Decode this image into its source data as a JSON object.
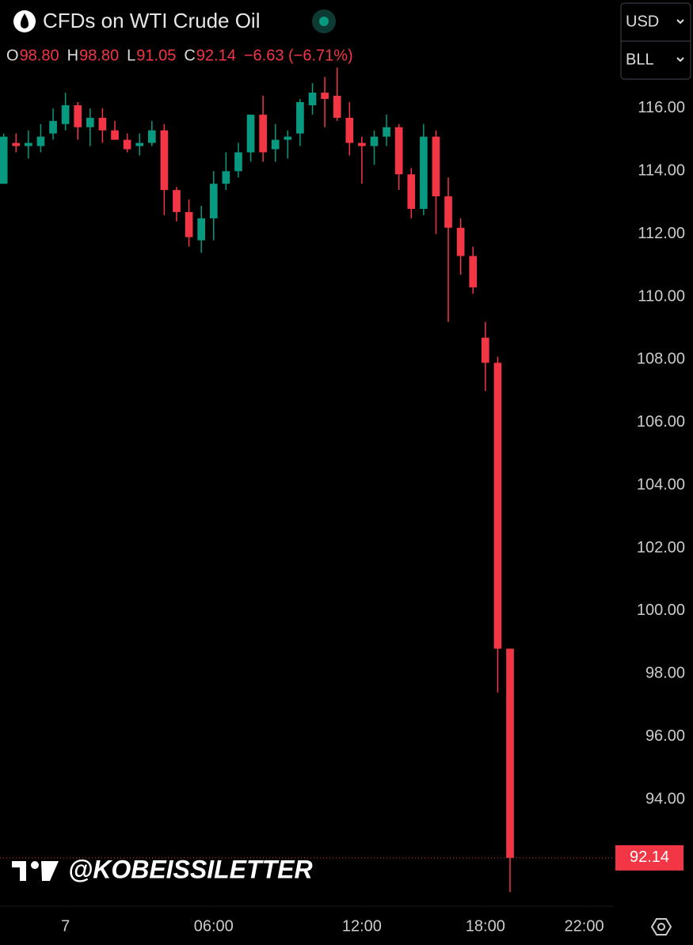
{
  "header": {
    "title": "CFDs on WTI Crude Oil",
    "ohlc": [
      {
        "label": "O",
        "value": "98.80"
      },
      {
        "label": "H",
        "value": "98.80"
      },
      {
        "label": "L",
        "value": "91.05"
      },
      {
        "label": "C",
        "value": "92.14"
      }
    ],
    "change": "−6.63 (−6.71%)"
  },
  "controls": {
    "currency": "USD",
    "unit": "BLL"
  },
  "watermark": "@KOBEISSILETTER",
  "last_price_label": "92.14",
  "chart_data": {
    "type": "candlestick",
    "up_color": "#089981",
    "down_color": "#f23645",
    "xlim": [
      -0.3,
      49.4
    ],
    "ylim": [
      90.6,
      119.45
    ],
    "xticks": [
      {
        "value": 5,
        "label": "7"
      },
      {
        "value": 17,
        "label": "06:00"
      },
      {
        "value": 29,
        "label": "12:00"
      },
      {
        "value": 39,
        "label": "18:00"
      },
      {
        "value": 47,
        "label": "22:00"
      }
    ],
    "yticks": [
      {
        "value": 94,
        "label": "94.00"
      },
      {
        "value": 96,
        "label": "96.00"
      },
      {
        "value": 98,
        "label": "98.00"
      },
      {
        "value": 100,
        "label": "100.00"
      },
      {
        "value": 102,
        "label": "102.00"
      },
      {
        "value": 104,
        "label": "104.00"
      },
      {
        "value": 106,
        "label": "106.00"
      },
      {
        "value": 108,
        "label": "108.00"
      },
      {
        "value": 110,
        "label": "110.00"
      },
      {
        "value": 112,
        "label": "112.00"
      },
      {
        "value": 114,
        "label": "114.00"
      },
      {
        "value": 116,
        "label": "116.00"
      }
    ],
    "open": [
      113.6,
      114.9,
      114.8,
      114.8,
      115.2,
      115.5,
      116.1,
      115.4,
      115.7,
      115.3,
      115.0,
      114.8,
      114.9,
      115.3,
      113.4,
      112.7,
      111.8,
      112.5,
      113.6,
      114.0,
      114.6,
      115.8,
      114.7,
      115.0,
      115.2,
      116.1,
      116.5,
      116.4,
      115.7,
      114.9,
      114.8,
      115.1,
      115.4,
      113.9,
      112.8,
      115.1,
      113.2,
      112.2,
      111.3,
      108.7,
      107.9,
      98.8
    ],
    "high": [
      115.2,
      115.2,
      115.3,
      115.5,
      116.0,
      116.5,
      116.2,
      116.0,
      116.0,
      115.6,
      115.2,
      115.2,
      115.6,
      115.5,
      113.5,
      113.1,
      112.9,
      114.0,
      114.6,
      114.9,
      115.8,
      116.4,
      115.5,
      115.3,
      116.3,
      116.8,
      117.0,
      117.3,
      116.2,
      115.1,
      115.3,
      115.8,
      115.5,
      114.1,
      115.5,
      115.3,
      113.8,
      112.5,
      111.6,
      109.2,
      108.1,
      98.8
    ],
    "low": [
      113.6,
      114.6,
      114.4,
      114.6,
      115.0,
      115.3,
      115.0,
      114.8,
      114.9,
      115.0,
      114.6,
      114.5,
      114.8,
      112.6,
      112.4,
      111.6,
      111.4,
      111.8,
      113.4,
      113.8,
      114.3,
      114.3,
      114.3,
      114.4,
      114.8,
      115.8,
      115.4,
      115.6,
      114.5,
      113.6,
      114.2,
      114.8,
      113.4,
      112.5,
      112.6,
      112.0,
      109.2,
      110.7,
      110.1,
      107.0,
      97.4,
      91.05
    ],
    "close": [
      115.1,
      114.8,
      114.9,
      115.1,
      115.6,
      116.1,
      115.4,
      115.7,
      115.3,
      115.0,
      114.7,
      114.9,
      115.3,
      113.4,
      112.7,
      111.9,
      112.5,
      113.6,
      114.0,
      114.6,
      115.8,
      114.6,
      115.0,
      115.1,
      116.2,
      116.5,
      116.3,
      115.7,
      114.9,
      114.8,
      115.1,
      115.4,
      113.9,
      112.8,
      115.1,
      113.2,
      112.2,
      111.3,
      110.3,
      107.9,
      98.8,
      92.14
    ]
  }
}
